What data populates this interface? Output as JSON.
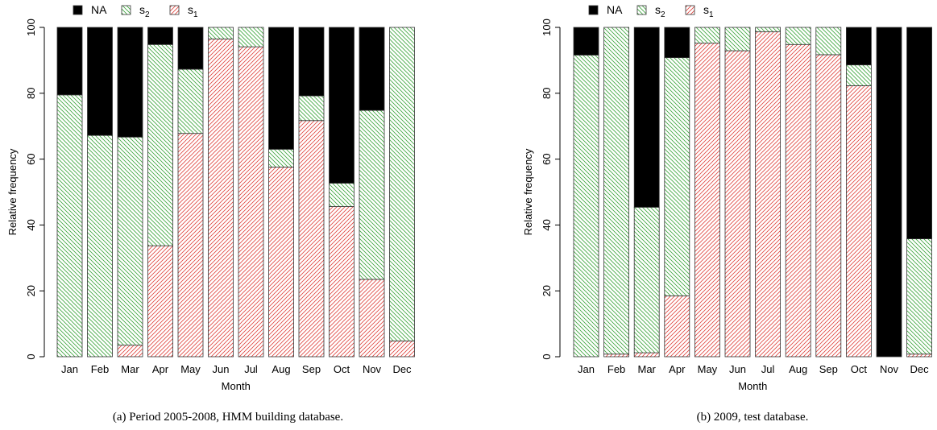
{
  "chart_data": [
    {
      "type": "bar",
      "stacked": true,
      "categories": [
        "Jan",
        "Feb",
        "Mar",
        "Apr",
        "May",
        "Jun",
        "Jul",
        "Aug",
        "Sep",
        "Oct",
        "Nov",
        "Dec"
      ],
      "series": [
        {
          "name": "s1",
          "label_base": "s",
          "label_sub": "1",
          "color": "#e0443e",
          "values": [
            0,
            0,
            3.5,
            33.7,
            67.8,
            96.5,
            94.1,
            57.6,
            71.7,
            45.6,
            23.5,
            4.8
          ]
        },
        {
          "name": "s2",
          "label_base": "s",
          "label_sub": "2",
          "color": "#3ca53c",
          "values": [
            79.5,
            67.2,
            63.2,
            61.1,
            19.5,
            3.5,
            5.9,
            5.4,
            7.5,
            7.1,
            51.3,
            95.2
          ]
        },
        {
          "name": "NA",
          "label_base": "NA",
          "label_sub": "",
          "color": "#000000",
          "values": [
            20.5,
            32.8,
            33.3,
            5.2,
            12.7,
            0,
            0,
            37.0,
            20.8,
            47.3,
            25.2,
            0
          ]
        }
      ],
      "xlabel": "Month",
      "ylabel": "Relative frequency",
      "ylim": [
        0,
        100
      ],
      "yticks": [
        0,
        20,
        40,
        60,
        80,
        100
      ],
      "grid": false,
      "legend_position": "top-left",
      "caption": "(a) Period 2005-2008, HMM building database."
    },
    {
      "type": "bar",
      "stacked": true,
      "categories": [
        "Jan",
        "Feb",
        "Mar",
        "Apr",
        "May",
        "Jun",
        "Jul",
        "Aug",
        "Sep",
        "Oct",
        "Nov",
        "Dec"
      ],
      "series": [
        {
          "name": "s1",
          "label_base": "s",
          "label_sub": "1",
          "color": "#e0443e",
          "values": [
            0,
            0.8,
            1.2,
            18.5,
            95.2,
            92.9,
            98.7,
            94.8,
            91.7,
            82.3,
            0,
            0.8
          ]
        },
        {
          "name": "s2",
          "label_base": "s",
          "label_sub": "2",
          "color": "#3ca53c",
          "values": [
            91.6,
            99.2,
            44.2,
            72.3,
            4.8,
            7.1,
            1.3,
            5.2,
            8.3,
            6.3,
            0,
            35.0
          ]
        },
        {
          "name": "NA",
          "label_base": "NA",
          "label_sub": "",
          "color": "#000000",
          "values": [
            8.4,
            0,
            54.6,
            9.2,
            0,
            0,
            0,
            0,
            0,
            11.4,
            100,
            64.2
          ]
        }
      ],
      "xlabel": "Month",
      "ylabel": "Relative frequency",
      "ylim": [
        0,
        100
      ],
      "yticks": [
        0,
        20,
        40,
        60,
        80,
        100
      ],
      "grid": false,
      "legend_position": "top-left",
      "caption": "(b) 2009, test database."
    }
  ]
}
